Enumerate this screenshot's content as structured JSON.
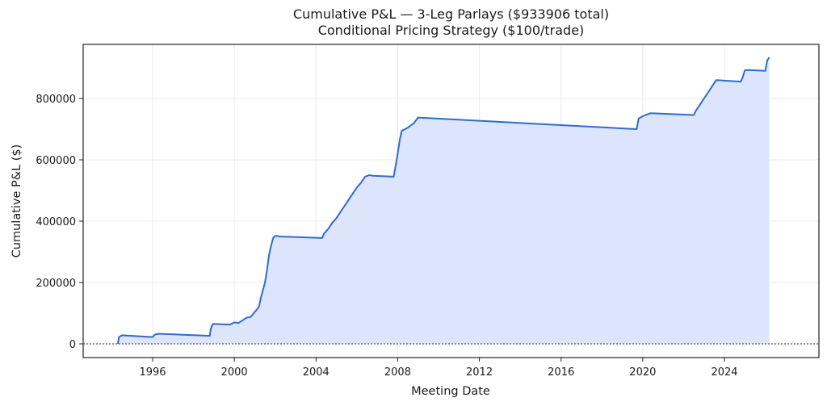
{
  "title": {
    "line1": "Cumulative P&L — 3-Leg Parlays ($933906 total)",
    "line2": "Conditional Pricing Strategy ($100/trade)"
  },
  "colors": {
    "line": "#2f6bd0",
    "fill": "#dce5fb",
    "grid": "#ebebeb",
    "zero_line": "#333333"
  },
  "chart_data": {
    "type": "line",
    "title": "Cumulative P&L — 3-Leg Parlays ($933906 total)\nConditional Pricing Strategy ($100/trade)",
    "xlabel": "Meeting Date",
    "ylabel": "Cumulative P&L ($)",
    "x_ticks": [
      "1996",
      "2000",
      "2004",
      "2008",
      "2012",
      "2016",
      "2020",
      "2024"
    ],
    "y_ticks": [
      "0",
      "200000",
      "400000",
      "600000",
      "800000"
    ],
    "xlim": [
      1993.3,
      2027.0
    ],
    "ylim": [
      -45000,
      975000
    ],
    "grid": true,
    "legend": null,
    "fill_under": true,
    "zero_line": "dotted",
    "series": [
      {
        "name": "Cumulative P&L",
        "step": true,
        "x": [
          1994.3,
          1994.35,
          1994.5,
          1996.0,
          1996.1,
          1996.3,
          1998.8,
          1998.85,
          1998.95,
          1999.8,
          2000.0,
          2000.2,
          2000.6,
          2000.8,
          2001.2,
          2001.3,
          2001.4,
          2001.5,
          2001.6,
          2001.7,
          2001.8,
          2001.9,
          2002.0,
          2002.1,
          2002.2,
          2004.3,
          2004.4,
          2004.6,
          2004.8,
          2005.0,
          2005.2,
          2005.4,
          2005.6,
          2005.8,
          2006.0,
          2006.2,
          2006.4,
          2006.6,
          2006.8,
          2007.8,
          2007.9,
          2008.0,
          2008.1,
          2008.2,
          2008.3,
          2008.5,
          2008.8,
          2009.0,
          2019.7,
          2019.8,
          2020.0,
          2020.2,
          2020.4,
          2022.5,
          2022.6,
          2022.8,
          2023.0,
          2023.2,
          2023.4,
          2023.6,
          2024.8,
          2024.9,
          2025.0,
          2025.2,
          2026.0,
          2026.1,
          2026.2
        ],
        "y": [
          0,
          22000,
          28000,
          22000,
          30000,
          33000,
          26000,
          50000,
          65000,
          63000,
          70000,
          68000,
          85000,
          88000,
          120000,
          150000,
          175000,
          200000,
          240000,
          290000,
          320000,
          345000,
          352000,
          352000,
          350000,
          345000,
          360000,
          375000,
          395000,
          410000,
          430000,
          450000,
          470000,
          490000,
          510000,
          525000,
          545000,
          550000,
          548000,
          545000,
          580000,
          620000,
          665000,
          695000,
          698000,
          705000,
          720000,
          738000,
          700000,
          735000,
          742000,
          748000,
          752000,
          746000,
          760000,
          780000,
          800000,
          820000,
          840000,
          860000,
          855000,
          870000,
          892000,
          893000,
          890000,
          925000,
          933906
        ]
      }
    ]
  }
}
